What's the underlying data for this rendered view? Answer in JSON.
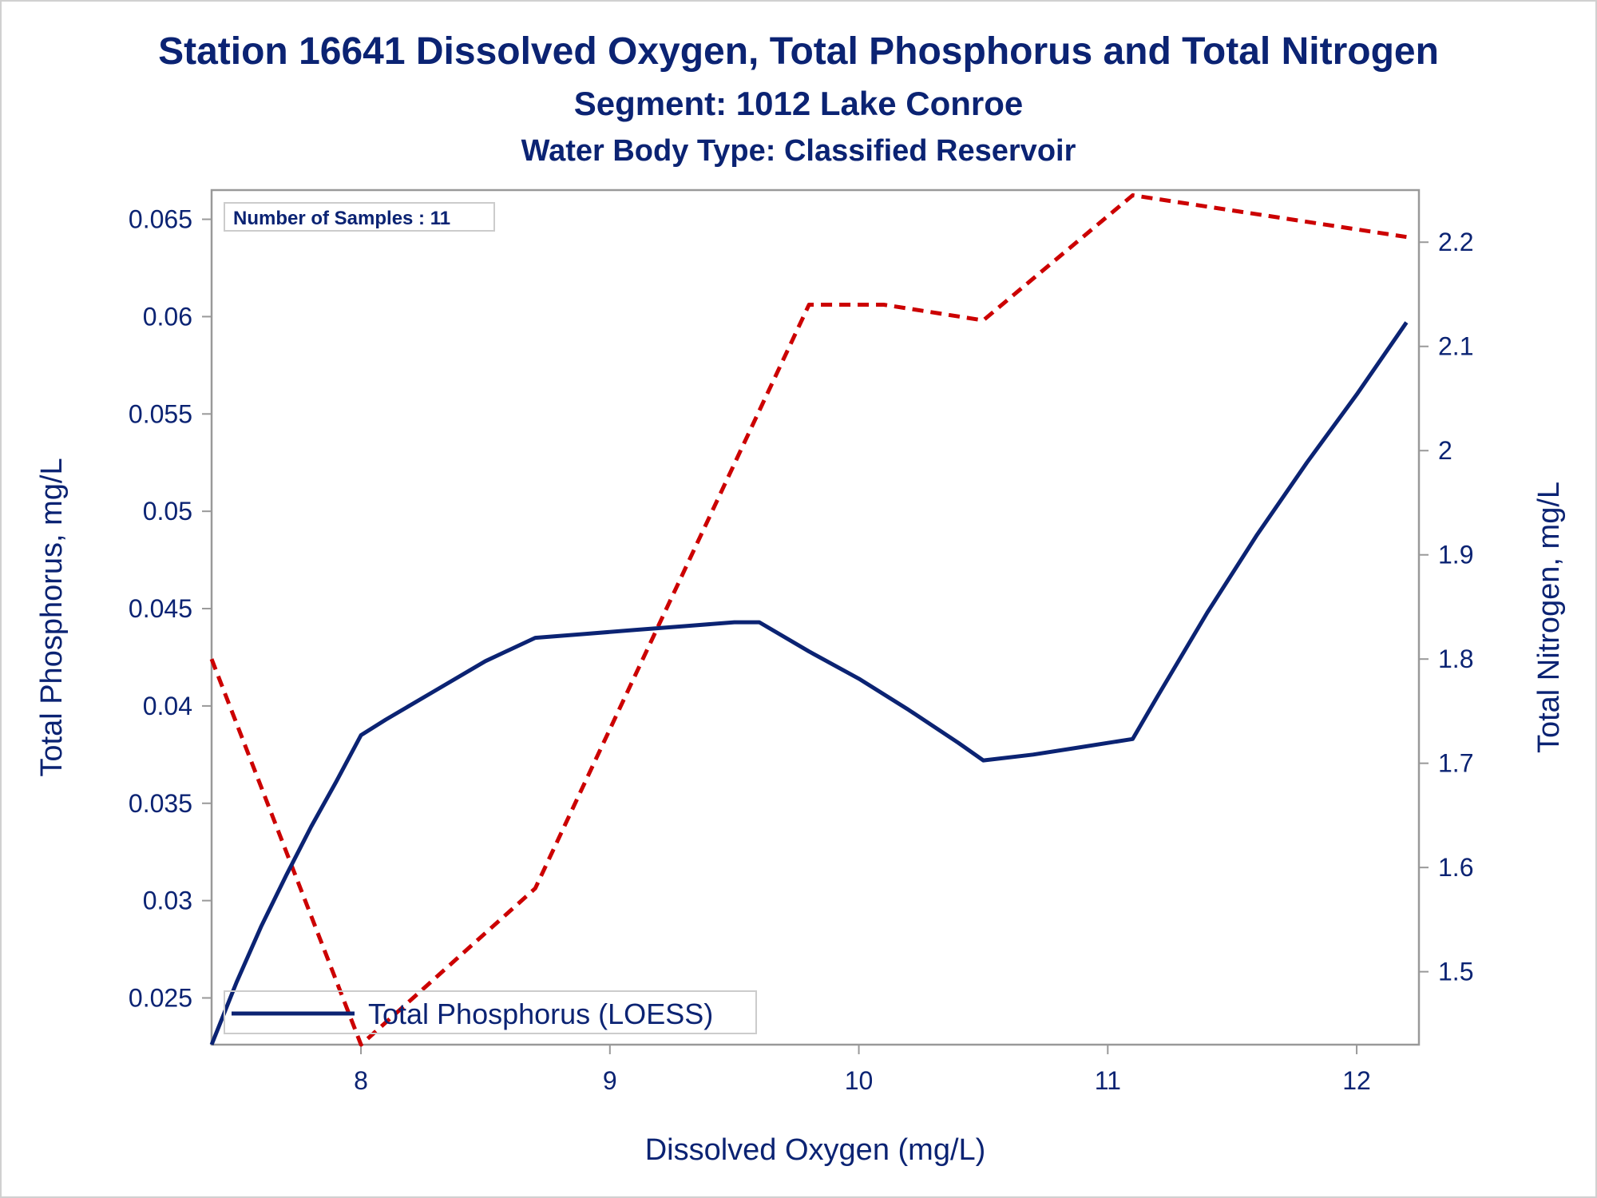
{
  "chart_data": {
    "type": "line",
    "title": "Station 16641  Dissolved Oxygen, Total Phosphorus and Total Nitrogen",
    "subtitle": "Segment: 1012  Lake Conroe",
    "subtitle2": "Water Body Type: Classified Reservoir",
    "xlabel": "Dissolved Oxygen (mg/L)",
    "ylabel": "Total Phosphorus, mg/L",
    "y2label": "Total Nitrogen, mg/L",
    "xlim": [
      7.4,
      12.25
    ],
    "ylim": [
      0.0226,
      0.0665
    ],
    "y2lim": [
      1.43,
      2.25
    ],
    "x_ticks": [
      "8",
      "9",
      "10",
      "11",
      "12"
    ],
    "x_tick_values": [
      8,
      9,
      10,
      11,
      12
    ],
    "y_ticks": [
      "0.025",
      "0.03",
      "0.035",
      "0.04",
      "0.045",
      "0.05",
      "0.055",
      "0.06",
      "0.065"
    ],
    "y_tick_values": [
      0.025,
      0.03,
      0.035,
      0.04,
      0.045,
      0.05,
      0.055,
      0.06,
      0.065
    ],
    "y2_ticks": [
      "1.5",
      "1.6",
      "1.7",
      "1.8",
      "1.9",
      "2",
      "2.1",
      "2.2"
    ],
    "y2_tick_values": [
      1.5,
      1.6,
      1.7,
      1.8,
      1.9,
      2.0,
      2.1,
      2.2
    ],
    "inset_text": "Number of Samples : 11",
    "legend_label": "Total Phosphorus (LOESS)",
    "legend_position": "bottom-left",
    "grid": false,
    "colors": {
      "phosphorus": "#0b2373",
      "nitrogen": "#cc0000",
      "text": "#0b2373",
      "frame": "#999999"
    },
    "series": [
      {
        "name": "Total Phosphorus (LOESS)",
        "axis": "left",
        "style": "solid",
        "x": [
          7.4,
          7.5,
          7.6,
          7.7,
          7.8,
          7.9,
          8.0,
          8.1,
          8.3,
          8.5,
          8.7,
          8.9,
          9.1,
          9.3,
          9.5,
          9.6,
          9.8,
          10.0,
          10.2,
          10.4,
          10.5,
          10.7,
          10.9,
          11.1,
          11.2,
          11.4,
          11.6,
          11.8,
          12.0,
          12.2
        ],
        "values": [
          0.0226,
          0.0258,
          0.0287,
          0.0313,
          0.0338,
          0.0361,
          0.0385,
          0.0393,
          0.0408,
          0.0423,
          0.0435,
          0.0437,
          0.0439,
          0.0441,
          0.0443,
          0.0443,
          0.0428,
          0.0414,
          0.0398,
          0.0381,
          0.0372,
          0.0375,
          0.0379,
          0.0383,
          0.0405,
          0.0448,
          0.0488,
          0.0525,
          0.056,
          0.0597
        ]
      },
      {
        "name": "Total Nitrogen",
        "axis": "right",
        "style": "dashed",
        "x": [
          7.4,
          8.0,
          8.7,
          9.8,
          10.1,
          10.5,
          11.1,
          12.2
        ],
        "values": [
          1.8,
          1.43,
          1.58,
          2.14,
          2.14,
          2.125,
          2.245,
          2.205
        ]
      }
    ]
  }
}
